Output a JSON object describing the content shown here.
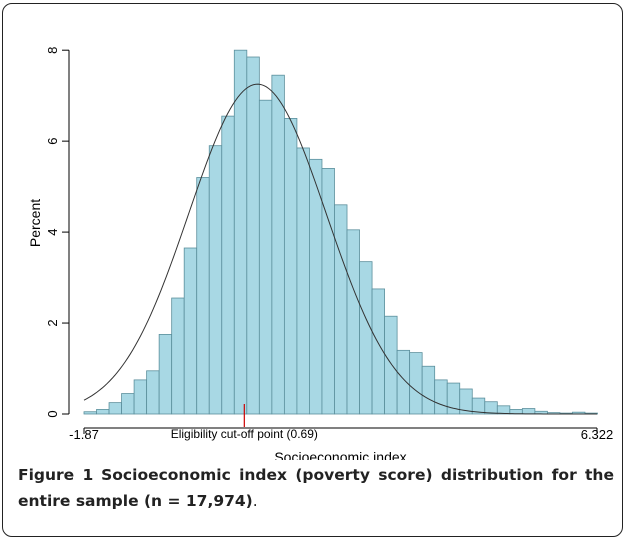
{
  "chart_data": {
    "type": "bar",
    "title": "",
    "xlabel": "Socioeconomic index",
    "ylabel": "Percent",
    "x_tick_labels": [
      "-1.87",
      "6.322"
    ],
    "xlim": [
      -1.87,
      6.322
    ],
    "ylim": [
      0,
      8.4
    ],
    "y_ticks": [
      0,
      2,
      4,
      6,
      8
    ],
    "bin_width": 0.2,
    "bin_start": -1.87,
    "values": [
      0.05,
      0.1,
      0.25,
      0.45,
      0.75,
      0.95,
      1.75,
      2.55,
      3.65,
      5.2,
      5.9,
      6.55,
      8.0,
      7.85,
      6.9,
      7.45,
      6.5,
      5.85,
      5.6,
      5.4,
      4.6,
      4.05,
      3.35,
      2.75,
      2.15,
      1.4,
      1.35,
      1.05,
      0.75,
      0.68,
      0.55,
      0.35,
      0.27,
      0.18,
      0.1,
      0.12,
      0.06,
      0.03,
      0.02,
      0.04,
      0.02
    ],
    "normal_curve": {
      "mean": 0.9,
      "sd": 1.1
    },
    "grid": false,
    "bar_color": "#a8d8e4",
    "bar_edge_color": "#5b8f9c",
    "curve_color": "#333333",
    "annotation": {
      "text": "Eligibility cut-off point (0.69)",
      "x": 0.69,
      "marker_color": "#cc0000"
    }
  },
  "caption": {
    "label": "Figure 1",
    "title": "Socioeconomic index (poverty score) distribution for the entire sample (n = 17,974)",
    "tail": "."
  }
}
